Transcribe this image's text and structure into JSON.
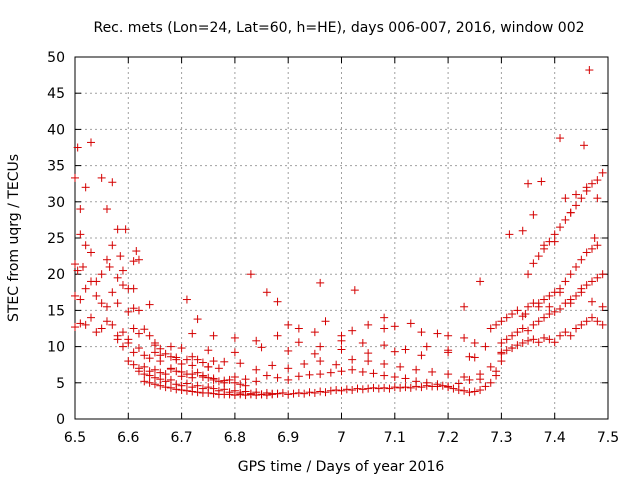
{
  "chart_data": {
    "type": "scatter",
    "title": "Rec. mets (Lon=24, Lat=60, h=HE), days 006-007, 2016, window 002",
    "xlabel": "GPS time / Days of year 2016",
    "ylabel": "STEC from uqrg / TECUs",
    "xlim": [
      6.5,
      7.5
    ],
    "ylim": [
      0,
      50
    ],
    "xticks": [
      6.5,
      6.6,
      6.7,
      6.8,
      6.9,
      7.0,
      7.1,
      7.2,
      7.3,
      7.4,
      7.5
    ],
    "xtick_labels": [
      "6.5",
      "6.6",
      "6.7",
      "6.8",
      "6.9",
      "7",
      "7.1",
      "7.2",
      "7.3",
      "7.4",
      "7.5"
    ],
    "yticks": [
      0,
      5,
      10,
      15,
      20,
      25,
      30,
      35,
      40,
      45,
      50
    ],
    "ytick_labels": [
      "0",
      "5",
      "10",
      "15",
      "20",
      "25",
      "30",
      "35",
      "40",
      "45",
      "50"
    ],
    "grid": true,
    "marker": "+",
    "color": "#d40000",
    "series": [
      {
        "name": "STEC",
        "x": [
          6.5,
          6.505,
          6.51,
          6.52,
          6.53,
          6.55,
          6.56,
          6.57,
          6.58,
          6.585,
          6.595,
          6.61,
          6.615,
          6.64,
          6.5,
          6.505,
          6.51,
          6.515,
          6.52,
          6.53,
          6.54,
          6.55,
          6.56,
          6.565,
          6.57,
          6.58,
          6.59,
          6.6,
          6.61,
          6.62,
          6.5,
          6.51,
          6.52,
          6.53,
          6.54,
          6.55,
          6.56,
          6.57,
          6.58,
          6.59,
          6.6,
          6.61,
          6.62,
          6.5,
          6.51,
          6.52,
          6.53,
          6.54,
          6.55,
          6.56,
          6.57,
          6.58,
          6.59,
          6.6,
          6.61,
          6.62,
          6.63,
          6.64,
          6.65,
          6.66,
          6.68,
          6.58,
          6.59,
          6.6,
          6.61,
          6.62,
          6.63,
          6.64,
          6.65,
          6.66,
          6.67,
          6.68,
          6.69,
          6.7,
          6.71,
          6.72,
          6.73,
          6.74,
          6.75,
          6.76,
          6.77,
          6.6,
          6.61,
          6.62,
          6.63,
          6.64,
          6.65,
          6.66,
          6.67,
          6.68,
          6.69,
          6.7,
          6.71,
          6.72,
          6.73,
          6.74,
          6.75,
          6.76,
          6.77,
          6.78,
          6.79,
          6.8,
          6.81,
          6.82,
          6.62,
          6.63,
          6.64,
          6.65,
          6.66,
          6.67,
          6.68,
          6.69,
          6.7,
          6.71,
          6.72,
          6.73,
          6.74,
          6.75,
          6.76,
          6.77,
          6.78,
          6.79,
          6.8,
          6.81,
          6.82,
          6.83,
          6.84,
          6.85,
          6.86,
          6.87,
          6.88,
          6.63,
          6.64,
          6.65,
          6.66,
          6.67,
          6.68,
          6.69,
          6.7,
          6.71,
          6.72,
          6.73,
          6.74,
          6.75,
          6.76,
          6.77,
          6.78,
          6.79,
          6.8,
          6.81,
          6.82,
          6.83,
          6.84,
          6.85,
          6.86,
          6.87,
          6.88,
          6.89,
          6.9,
          6.91,
          6.92,
          6.93,
          6.94,
          6.95,
          6.96,
          6.97,
          6.98,
          6.99,
          7.0,
          7.01,
          7.02,
          7.03,
          7.04,
          7.05,
          7.06,
          7.07,
          7.08,
          7.09,
          7.1,
          7.11,
          7.12,
          7.13,
          7.14,
          7.15,
          7.16,
          7.17,
          7.18,
          7.19,
          7.2,
          7.21,
          7.22,
          7.23,
          7.24,
          7.25,
          7.26,
          7.27,
          7.28,
          7.29,
          6.68,
          6.7,
          6.72,
          6.74,
          6.76,
          6.78,
          6.8,
          6.82,
          6.84,
          6.86,
          6.88,
          6.9,
          6.92,
          6.94,
          6.96,
          6.98,
          7.0,
          7.02,
          7.04,
          7.06,
          7.08,
          7.1,
          7.12,
          7.14,
          7.16,
          7.18,
          7.2,
          7.22,
          7.24,
          7.26,
          7.28,
          6.66,
          6.69,
          6.72,
          6.75,
          6.78,
          6.81,
          6.84,
          6.87,
          6.9,
          6.93,
          6.96,
          6.99,
          7.02,
          7.05,
          7.08,
          7.11,
          7.14,
          7.17,
          7.2,
          7.23,
          7.26,
          7.29,
          6.65,
          6.7,
          6.75,
          6.8,
          6.85,
          6.9,
          6.95,
          7.0,
          7.05,
          7.1,
          7.15,
          7.2,
          7.25,
          7.3,
          6.72,
          6.76,
          6.8,
          6.84,
          6.88,
          6.92,
          6.96,
          7.0,
          7.04,
          7.08,
          7.12,
          7.16,
          7.2,
          7.24,
          6.9,
          6.92,
          6.95,
          6.97,
          7.0,
          7.02,
          7.05,
          7.08,
          7.1,
          7.13,
          7.15,
          7.18,
          7.2,
          7.23,
          7.25,
          7.27,
          7.3,
          7.32,
          6.83,
          6.71,
          6.73,
          6.86,
          6.88,
          6.96,
          7.025,
          7.08,
          7.23,
          7.26,
          7.3,
          7.31,
          7.32,
          7.33,
          7.34,
          7.35,
          7.36,
          7.37,
          7.38,
          7.39,
          7.4,
          7.41,
          7.42,
          7.43,
          7.44,
          7.45,
          7.46,
          7.47,
          7.48,
          7.49,
          7.3,
          7.31,
          7.32,
          7.33,
          7.34,
          7.35,
          7.36,
          7.37,
          7.38,
          7.39,
          7.4,
          7.41,
          7.42,
          7.43,
          7.44,
          7.45,
          7.46,
          7.47,
          7.48,
          7.49,
          7.28,
          7.29,
          7.3,
          7.31,
          7.32,
          7.33,
          7.34,
          7.35,
          7.36,
          7.37,
          7.38,
          7.39,
          7.4,
          7.41,
          7.42,
          7.43,
          7.44,
          7.45,
          7.46,
          7.47,
          7.48,
          7.35,
          7.36,
          7.37,
          7.38,
          7.39,
          7.4,
          7.41,
          7.42,
          7.43,
          7.44,
          7.45,
          7.46,
          7.47,
          7.48,
          7.49,
          7.315,
          7.34,
          7.36,
          7.38,
          7.4,
          7.42,
          7.44,
          7.46,
          7.48,
          7.345,
          7.37,
          7.39,
          7.41,
          7.43,
          7.45,
          7.47,
          7.49,
          7.35,
          7.375,
          7.41,
          7.43,
          7.455,
          7.465,
          7.475
        ],
        "y": [
          33.3,
          37.5,
          29.0,
          32.0,
          38.2,
          33.3,
          29.0,
          32.7,
          26.2,
          22.5,
          26.2,
          21.8,
          23.2,
          15.8,
          21.4,
          20.5,
          25.5,
          21.0,
          24.0,
          23.0,
          19.0,
          20.0,
          22.0,
          21.0,
          24.0,
          19.5,
          20.5,
          18.0,
          18.0,
          22.0,
          17.0,
          16.5,
          18.0,
          19.0,
          17.0,
          16.0,
          15.5,
          17.5,
          16.0,
          18.5,
          14.8,
          15.3,
          15.0,
          12.7,
          13.2,
          13.0,
          14.0,
          12.0,
          12.5,
          13.5,
          13.0,
          11.5,
          12.0,
          11.0,
          12.5,
          11.8,
          12.4,
          11.5,
          10.5,
          9.7,
          10.0,
          11.0,
          10.0,
          10.5,
          9.2,
          9.8,
          8.8,
          8.4,
          9.2,
          8.0,
          9.0,
          8.6,
          8.2,
          7.6,
          8.2,
          7.4,
          8.2,
          7.8,
          7.2,
          8.0,
          7.0,
          8.0,
          7.5,
          7.0,
          7.2,
          6.6,
          6.8,
          6.4,
          6.2,
          6.9,
          6.6,
          5.9,
          6.2,
          5.7,
          6.4,
          6.0,
          5.7,
          5.4,
          5.2,
          5.0,
          5.4,
          5.0,
          4.8,
          4.6,
          6.6,
          6.2,
          6.0,
          5.7,
          5.5,
          5.2,
          5.4,
          4.8,
          4.6,
          4.9,
          4.4,
          4.6,
          4.2,
          4.4,
          4.2,
          3.9,
          4.1,
          3.7,
          3.9,
          3.6,
          3.8,
          3.5,
          3.7,
          3.4,
          3.6,
          3.4,
          3.5,
          5.2,
          5.0,
          4.8,
          4.6,
          4.4,
          4.3,
          4.1,
          4.0,
          3.9,
          3.8,
          3.7,
          3.6,
          3.6,
          3.5,
          3.4,
          3.4,
          3.4,
          3.3,
          3.4,
          3.3,
          3.4,
          3.3,
          3.4,
          3.3,
          3.5,
          3.5,
          3.6,
          3.4,
          3.5,
          3.6,
          3.5,
          3.7,
          3.6,
          3.8,
          3.7,
          3.9,
          4.0,
          3.9,
          4.1,
          4.0,
          4.2,
          4.1,
          4.2,
          4.3,
          4.2,
          4.3,
          4.2,
          4.4,
          4.3,
          4.4,
          4.3,
          4.5,
          4.4,
          4.6,
          4.5,
          4.5,
          4.6,
          4.4,
          4.2,
          4.0,
          3.9,
          3.7,
          3.8,
          4.0,
          4.5,
          5.0,
          6.0,
          7.0,
          6.5,
          6.2,
          5.8,
          5.6,
          5.3,
          5.8,
          5.5,
          5.2,
          6.0,
          5.7,
          5.4,
          5.9,
          6.1,
          6.2,
          6.4,
          6.6,
          6.8,
          6.5,
          6.3,
          6.0,
          5.8,
          5.6,
          5.2,
          5.0,
          4.8,
          4.5,
          4.9,
          5.4,
          6.2,
          7.2,
          8.8,
          8.5,
          8.6,
          7.2,
          7.9,
          7.7,
          6.8,
          7.4,
          7.0,
          7.6,
          8.0,
          7.5,
          8.2,
          8.0,
          7.6,
          7.2,
          6.8,
          6.5,
          6.2,
          5.8,
          5.5,
          6.6,
          10.2,
          9.8,
          9.5,
          9.2,
          9.9,
          9.4,
          9.0,
          9.6,
          9.1,
          9.3,
          8.8,
          9.2,
          8.5,
          8.0,
          11.8,
          11.5,
          11.2,
          10.8,
          11.5,
          10.6,
          10.0,
          10.8,
          10.5,
          10.2,
          9.6,
          10.0,
          9.5,
          8.6,
          13.0,
          12.5,
          12.0,
          13.5,
          11.5,
          12.2,
          13.0,
          12.5,
          12.8,
          13.2,
          12.0,
          11.8,
          11.5,
          11.2,
          10.5,
          10.0,
          9.2,
          9.8,
          20.0,
          16.5,
          13.8,
          17.5,
          16.2,
          18.8,
          17.8,
          14.0,
          15.5,
          19.0,
          9.0,
          9.5,
          9.8,
          10.2,
          10.5,
          10.8,
          11.0,
          10.6,
          11.2,
          11.0,
          10.6,
          11.5,
          12.0,
          11.5,
          12.5,
          13.0,
          13.5,
          14.0,
          13.5,
          13.0,
          10.5,
          11.0,
          11.5,
          12.0,
          12.5,
          12.2,
          13.0,
          13.5,
          14.0,
          14.5,
          14.8,
          15.2,
          16.0,
          16.5,
          17.0,
          17.5,
          18.5,
          19.0,
          19.5,
          20.0,
          12.5,
          13.0,
          13.5,
          14.0,
          14.5,
          15.0,
          14.2,
          15.5,
          16.0,
          15.5,
          16.5,
          17.0,
          17.5,
          18.0,
          19.0,
          20.0,
          21.0,
          22.0,
          23.0,
          23.5,
          24.0,
          20.0,
          21.5,
          22.5,
          23.5,
          24.5,
          25.5,
          26.5,
          27.5,
          28.5,
          29.5,
          30.5,
          31.5,
          32.5,
          33.0,
          34.0,
          25.5,
          26.0,
          28.2,
          24.0,
          24.5,
          30.5,
          31.0,
          32.0,
          30.5,
          14.5,
          16.0,
          15.5,
          17.5,
          16.0,
          18.0,
          16.2,
          15.5,
          32.5,
          32.8,
          38.8,
          28.5,
          37.8,
          48.2,
          25.0
        ]
      }
    ]
  }
}
